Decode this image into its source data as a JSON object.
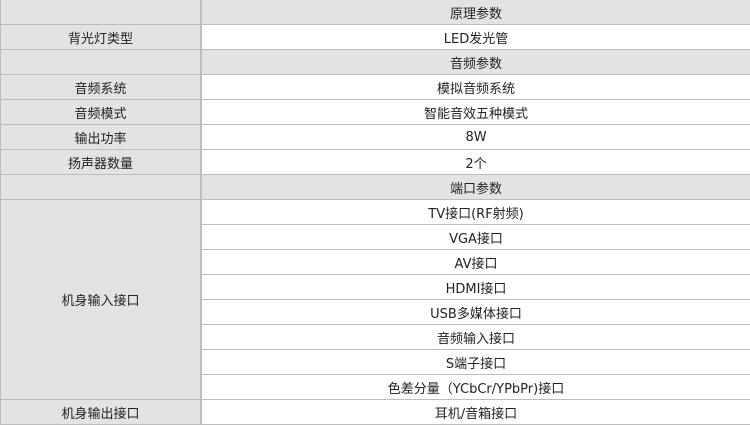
{
  "rows": [
    {
      "label": "",
      "value": "原理参数",
      "header": true
    },
    {
      "label": "背光灯类型",
      "value": "LED发光管"
    },
    {
      "label": "",
      "value": "音频参数",
      "header": true
    },
    {
      "label": "音频系统",
      "value": "模拟音频系统"
    },
    {
      "label": "音频模式",
      "value": "智能音效五种模式"
    },
    {
      "label": "输出功率",
      "value": "8W"
    },
    {
      "label": "扬声器数量",
      "value": "2个"
    },
    {
      "label": "",
      "value": "端口参数",
      "header": true
    }
  ],
  "input_ports": {
    "label": "机身输入接口",
    "values": [
      "TV接口(RF射频)",
      "VGA接口",
      "AV接口",
      "HDMI接口",
      "USB多媒体接口",
      "音频输入接口",
      "S端子接口",
      "色差分量（YCbCr/YPbPr)接口"
    ]
  },
  "output_ports": {
    "label": "机身输出接口",
    "value": "耳机/音箱接口"
  }
}
